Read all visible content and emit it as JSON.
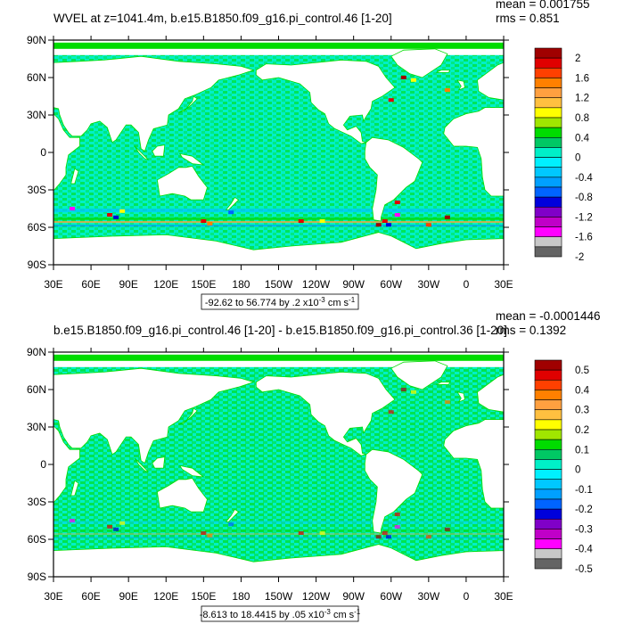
{
  "chart_data": [
    {
      "type": "heatmap",
      "title": "WVEL at z=1041.4m, b.e15.B1850.f09_g16.pi_control.46 [1-20]",
      "stats": {
        "mean": "mean = 0.001755",
        "rms": "rms = 0.851"
      },
      "x_ticks": [
        "30E",
        "60E",
        "90E",
        "120E",
        "150E",
        "180",
        "150W",
        "120W",
        "90W",
        "60W",
        "30W",
        "0",
        "30E"
      ],
      "y_ticks": [
        "90N",
        "60N",
        "30N",
        "0",
        "30S",
        "60S",
        "90S"
      ],
      "xlim": [
        30,
        390
      ],
      "ylim": [
        -90,
        90
      ],
      "colorbar_labels": [
        "2",
        "1.6",
        "1.2",
        "0.8",
        "0.4",
        "0",
        "-0.4",
        "-0.8",
        "-1.2",
        "-1.6",
        "-2"
      ],
      "colorbar_range": [
        -2,
        2
      ],
      "range_box": {
        "prefix": "-92.62 to 56.774 by .2 x10",
        "exp": "-3",
        "unit": " cm s",
        "unit_exp": "-1"
      }
    },
    {
      "type": "heatmap",
      "title": "b.e15.B1850.f09_g16.pi_control.46 [1-20] - b.e15.B1850.f09_g16.pi_control.36 [1-20]",
      "stats": {
        "mean": "mean = -0.0001446",
        "rms": "rms = 0.1392"
      },
      "x_ticks": [
        "30E",
        "60E",
        "90E",
        "120E",
        "150E",
        "180",
        "150W",
        "120W",
        "90W",
        "60W",
        "30W",
        "0",
        "30E"
      ],
      "y_ticks": [
        "90N",
        "60N",
        "30N",
        "0",
        "30S",
        "60S",
        "90S"
      ],
      "xlim": [
        30,
        390
      ],
      "ylim": [
        -90,
        90
      ],
      "colorbar_labels": [
        "0.5",
        "0.4",
        "0.3",
        "0.2",
        "0.1",
        "0",
        "-0.1",
        "-0.2",
        "-0.3",
        "-0.4",
        "-0.5"
      ],
      "colorbar_range": [
        -0.5,
        0.5
      ],
      "range_box": {
        "prefix": "-8.613 to 18.4415 by .05 x10",
        "exp": "-3",
        "unit": " cm s",
        "unit_exp": "-1"
      }
    }
  ],
  "colors": {
    "ocean": "#00F0C8",
    "land": "#FFFFFF",
    "palette": [
      "#A00000",
      "#E00000",
      "#FF4000",
      "#FF8000",
      "#FFA040",
      "#FFC040",
      "#FFFF00",
      "#A0E600",
      "#00DC00",
      "#00C864",
      "#00F0C8",
      "#00F0FF",
      "#00C8FF",
      "#00A0FF",
      "#0064FF",
      "#0000DC",
      "#8000C8",
      "#C000C8",
      "#FF00FF",
      "#C8C8C8",
      "#646464"
    ]
  }
}
